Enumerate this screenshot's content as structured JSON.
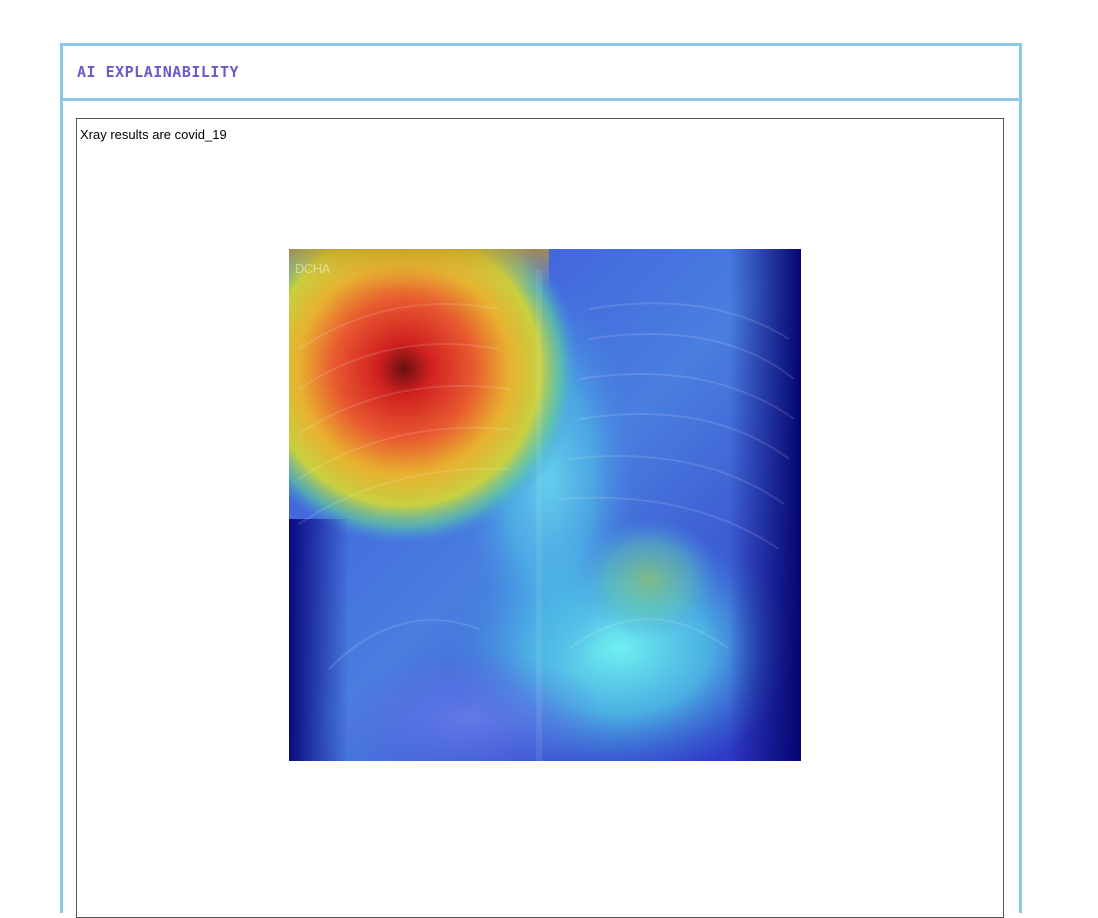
{
  "panel": {
    "title": "AI EXPLAINABILITY"
  },
  "result": {
    "text": "Xray results are covid_19"
  },
  "image": {
    "description_icon": "xray-heatmap-image",
    "watermark": "DCHA"
  }
}
